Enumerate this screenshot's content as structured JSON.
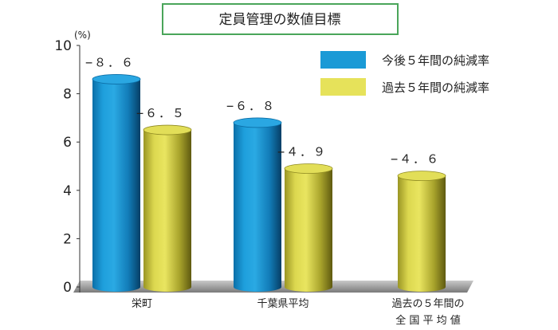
{
  "chart_data": {
    "type": "bar",
    "title": "定員管理の数値目標",
    "ylabel": "(%)",
    "ylim": [
      0,
      10
    ],
    "yticks": [
      "0",
      "2",
      "4",
      "6",
      "8",
      "10"
    ],
    "categories": [
      {
        "lines": [
          "栄町"
        ]
      },
      {
        "lines": [
          "千葉県平均"
        ]
      },
      {
        "lines": [
          "過去の５年間の",
          "全 国 平 均 値"
        ]
      }
    ],
    "series": [
      {
        "name": "今後５年間の純減率",
        "color": "#1a9ad6",
        "values": [
          8.6,
          6.8,
          null
        ],
        "labels": [
          "−８．６",
          "−６．８",
          ""
        ]
      },
      {
        "name": "過去５年間の純減率",
        "color": "#e6e25a",
        "values": [
          6.5,
          4.9,
          4.6
        ],
        "labels": [
          "−６．５",
          "−４．９",
          "−４．６"
        ]
      }
    ],
    "legend_position": "top-right",
    "grid": false
  }
}
